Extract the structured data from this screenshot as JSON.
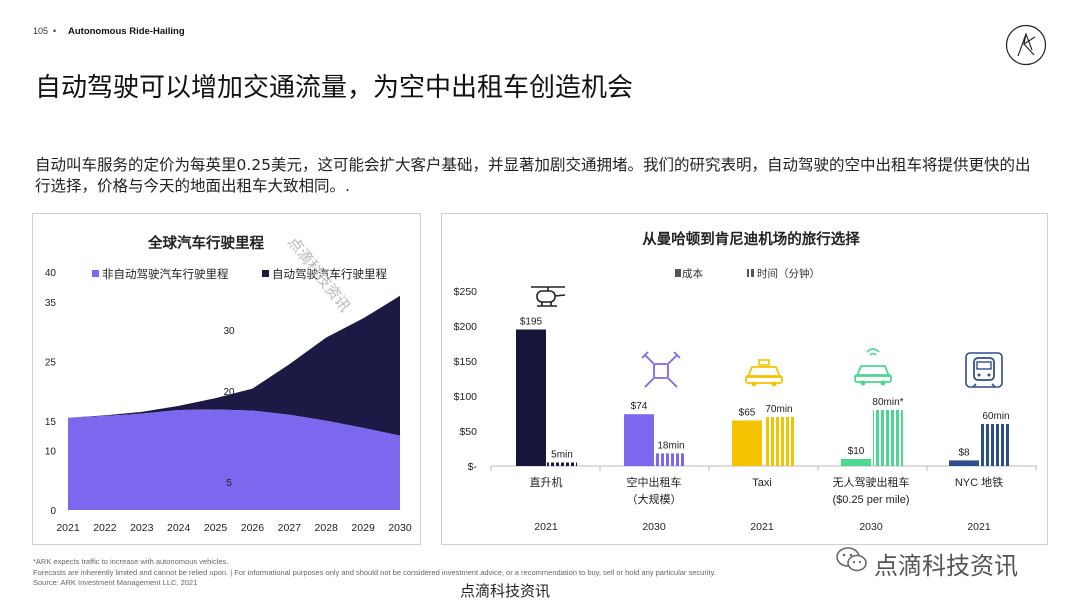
{
  "header": {
    "page_number": "105",
    "bullet": "•",
    "section": "Autonomous Ride-Hailing"
  },
  "title": "自动驾驶可以增加交通流量，为空中出租车创造机会",
  "intro": "自动叫车服务的定价为每英里0.25美元，这可能会扩大客户基础，并显著加剧交通拥堵。我们的研究表明，自动驾驶的空中出租车将提供更快的出行选择，价格与今天的地面出租车大致相同。.",
  "watermark": {
    "diagonal": "点滴科技资讯",
    "brand": "点滴科技资讯",
    "bottom": "点滴科技资讯"
  },
  "footnotes": [
    "*ARK expects traffic to increase with autonomous vehicles.",
    "Forecasts are inherently limited and cannot be relied upon. | For informational purposes only and should not be considered investment advice, or a recommendation to buy, sell or hold any particular security.",
    "Source: ARK Investment Management LLC, 2021"
  ],
  "colors": {
    "purple": "#7b68ee",
    "navy": "#1c1a45",
    "yellow": "#f5c400",
    "green": "#4cd890",
    "blue": "#2d4f8a",
    "helicopter": "#15163a"
  },
  "chart_data": [
    {
      "type": "area",
      "title": "全球汽车行驶里程",
      "x": [
        2021,
        2022,
        2023,
        2024,
        2025,
        2026,
        2027,
        2028,
        2029,
        2030
      ],
      "x_labels": [
        "2021",
        "2022",
        "2023",
        "2024",
        "2025",
        "2026",
        "2027",
        "2028",
        "2029",
        "2030"
      ],
      "ylim": [
        0,
        40
      ],
      "y_ticks": [
        0,
        10,
        15,
        25,
        35,
        40
      ],
      "series": [
        {
          "name": "非自动驾驶汽车行驶里程",
          "color": "#7b68ee",
          "values": [
            15.5,
            15.8,
            16.2,
            16.8,
            16.9,
            16.7,
            16.0,
            15.0,
            13.8,
            12.5
          ]
        },
        {
          "name": "自动驾驶汽车行驶里程",
          "color": "#1c1a45",
          "values": [
            0,
            0.1,
            0.3,
            0.7,
            1.9,
            3.7,
            8.5,
            14.0,
            18.4,
            23.5
          ]
        }
      ],
      "annotations": [
        "30",
        "20",
        "5"
      ]
    },
    {
      "type": "bar",
      "title": "从曼哈顿到肯尼迪机场的旅行选择",
      "legend": [
        "成本",
        "时间（分钟）"
      ],
      "ylim": [
        0,
        250
      ],
      "y_tick_labels": [
        "$-",
        "$50",
        "$100",
        "$150",
        "$200",
        "$250"
      ],
      "categories": [
        "直升机",
        "空中出租车（大规模）",
        "Taxi",
        "无人驾驶出租车($0.25 per mile)",
        "NYC 地铁"
      ],
      "category_lines": [
        [
          "直升机"
        ],
        [
          "空中出租车",
          "（大规模）"
        ],
        [
          "Taxi"
        ],
        [
          "无人驾驶出租车",
          "($0.25 per mile)"
        ],
        [
          "NYC 地铁"
        ]
      ],
      "years": [
        "2021",
        "2030",
        "2021",
        "2030",
        "2021"
      ],
      "icons": [
        "helicopter-icon",
        "drone-icon",
        "taxi-icon",
        "robotaxi-icon",
        "subway-icon"
      ],
      "series": [
        {
          "name": "成本",
          "values": [
            195,
            74,
            65,
            10,
            8
          ],
          "labels": [
            "$195",
            "$74",
            "$65",
            "$10",
            "$8"
          ]
        },
        {
          "name": "时间（分钟）",
          "values": [
            5,
            18,
            70,
            80,
            60
          ],
          "labels": [
            "5min",
            "18min",
            "70min",
            "80min*",
            "60min"
          ]
        }
      ]
    }
  ]
}
